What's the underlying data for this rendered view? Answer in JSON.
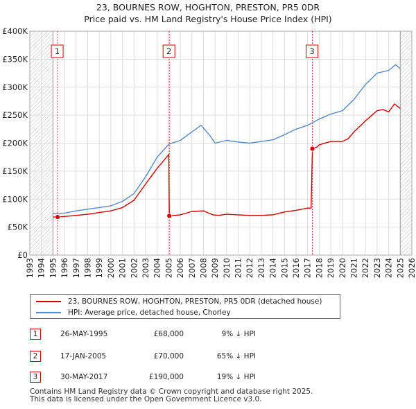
{
  "chart_data": {
    "type": "line",
    "title": "23, BOURNES ROW, HOGHTON, PRESTON, PR5 0DR",
    "subtitle": "Price paid vs. HM Land Registry's House Price Index (HPI)",
    "xlim": [
      1993,
      2026
    ],
    "ylim": [
      0,
      400000
    ],
    "x_ticks": [
      "1993",
      "1994",
      "1995",
      "1996",
      "1997",
      "1998",
      "1999",
      "2000",
      "2001",
      "2002",
      "2003",
      "2004",
      "2005",
      "2006",
      "2007",
      "2008",
      "2009",
      "2010",
      "2011",
      "2012",
      "2013",
      "2014",
      "2015",
      "2016",
      "2017",
      "2018",
      "2019",
      "2020",
      "2021",
      "2022",
      "2023",
      "2024",
      "2025",
      "2026"
    ],
    "y_ticks": [
      {
        "value": 0,
        "label": "£0"
      },
      {
        "value": 50000,
        "label": "£50K"
      },
      {
        "value": 100000,
        "label": "£100K"
      },
      {
        "value": 150000,
        "label": "£150K"
      },
      {
        "value": 200000,
        "label": "£200K"
      },
      {
        "value": 250000,
        "label": "£250K"
      },
      {
        "value": 300000,
        "label": "£300K"
      },
      {
        "value": 350000,
        "label": "£350K"
      },
      {
        "value": 400000,
        "label": "£400K"
      }
    ],
    "hatched_ranges": [
      [
        1993,
        1995
      ],
      [
        2025.0,
        2026
      ]
    ],
    "grid": true,
    "series": [
      {
        "name": "23, BOURNES ROW, HOGHTON, PRESTON, PR5 0DR (detached house)",
        "color": "#cc0000",
        "points": [
          [
            1995.0,
            68000
          ],
          [
            1995.4,
            68000
          ],
          [
            1996,
            69000
          ],
          [
            1997,
            71000
          ],
          [
            1998,
            73000
          ],
          [
            1999,
            76000
          ],
          [
            2000,
            79000
          ],
          [
            2001,
            85000
          ],
          [
            2002,
            98000
          ],
          [
            2003,
            127000
          ],
          [
            2004,
            155000
          ],
          [
            2004.9,
            177000
          ],
          [
            2005.0,
            180000
          ],
          [
            2005.05,
            70000
          ],
          [
            2006,
            72000
          ],
          [
            2007,
            78000
          ],
          [
            2008,
            79000
          ],
          [
            2008.8,
            72000
          ],
          [
            2009.3,
            71000
          ],
          [
            2010,
            73000
          ],
          [
            2011,
            72000
          ],
          [
            2012,
            71000
          ],
          [
            2013,
            71000
          ],
          [
            2014,
            72000
          ],
          [
            2015,
            77000
          ],
          [
            2016,
            80000
          ],
          [
            2017.0,
            84000
          ],
          [
            2017.3,
            84000
          ],
          [
            2017.41,
            190000
          ],
          [
            2017.8,
            193000
          ],
          [
            2018,
            197000
          ],
          [
            2019,
            203000
          ],
          [
            2020,
            203000
          ],
          [
            2020.5,
            208000
          ],
          [
            2021,
            220000
          ],
          [
            2022,
            240000
          ],
          [
            2023,
            258000
          ],
          [
            2023.5,
            260000
          ],
          [
            2024,
            256000
          ],
          [
            2024.5,
            270000
          ],
          [
            2025,
            262000
          ]
        ]
      },
      {
        "name": "HPI: Average price, detached house, Chorley",
        "color": "#5588cc",
        "points": [
          [
            1995,
            74000
          ],
          [
            1996,
            75000
          ],
          [
            1997,
            79000
          ],
          [
            1998,
            82000
          ],
          [
            1999,
            85000
          ],
          [
            2000,
            88000
          ],
          [
            2001,
            96000
          ],
          [
            2002,
            110000
          ],
          [
            2003,
            140000
          ],
          [
            2004,
            175000
          ],
          [
            2005,
            198000
          ],
          [
            2006,
            205000
          ],
          [
            2007,
            220000
          ],
          [
            2007.8,
            232000
          ],
          [
            2008.5,
            215000
          ],
          [
            2009,
            200000
          ],
          [
            2010,
            205000
          ],
          [
            2011,
            202000
          ],
          [
            2012,
            200000
          ],
          [
            2013,
            203000
          ],
          [
            2014,
            206000
          ],
          [
            2015,
            215000
          ],
          [
            2016,
            225000
          ],
          [
            2017,
            232000
          ],
          [
            2018,
            243000
          ],
          [
            2019,
            252000
          ],
          [
            2020,
            258000
          ],
          [
            2020.5,
            268000
          ],
          [
            2021,
            278000
          ],
          [
            2022,
            305000
          ],
          [
            2023,
            325000
          ],
          [
            2024,
            330000
          ],
          [
            2024.6,
            340000
          ],
          [
            2025,
            333000
          ]
        ]
      }
    ],
    "sales": [
      {
        "num": "1",
        "x": 1995.4,
        "value": 68000,
        "date": "26-MAY-1995",
        "price": "£68,000",
        "hpi": "9% ↓ HPI"
      },
      {
        "num": "2",
        "x": 2005.05,
        "value": 70000,
        "date": "17-JAN-2005",
        "price": "£70,000",
        "hpi": "65% ↓ HPI"
      },
      {
        "num": "3",
        "x": 2017.41,
        "value": 190000,
        "date": "30-MAY-2017",
        "price": "£190,000",
        "hpi": "19% ↓ HPI"
      }
    ]
  },
  "legend": {
    "property": "23, BOURNES ROW, HOGHTON, PRESTON, PR5 0DR (detached house)",
    "hpi": "HPI: Average price, detached house, Chorley"
  },
  "footer": {
    "line1": "Contains HM Land Registry data © Crown copyright and database right 2025.",
    "line2": "This data is licensed under the Open Government Licence v3.0."
  }
}
